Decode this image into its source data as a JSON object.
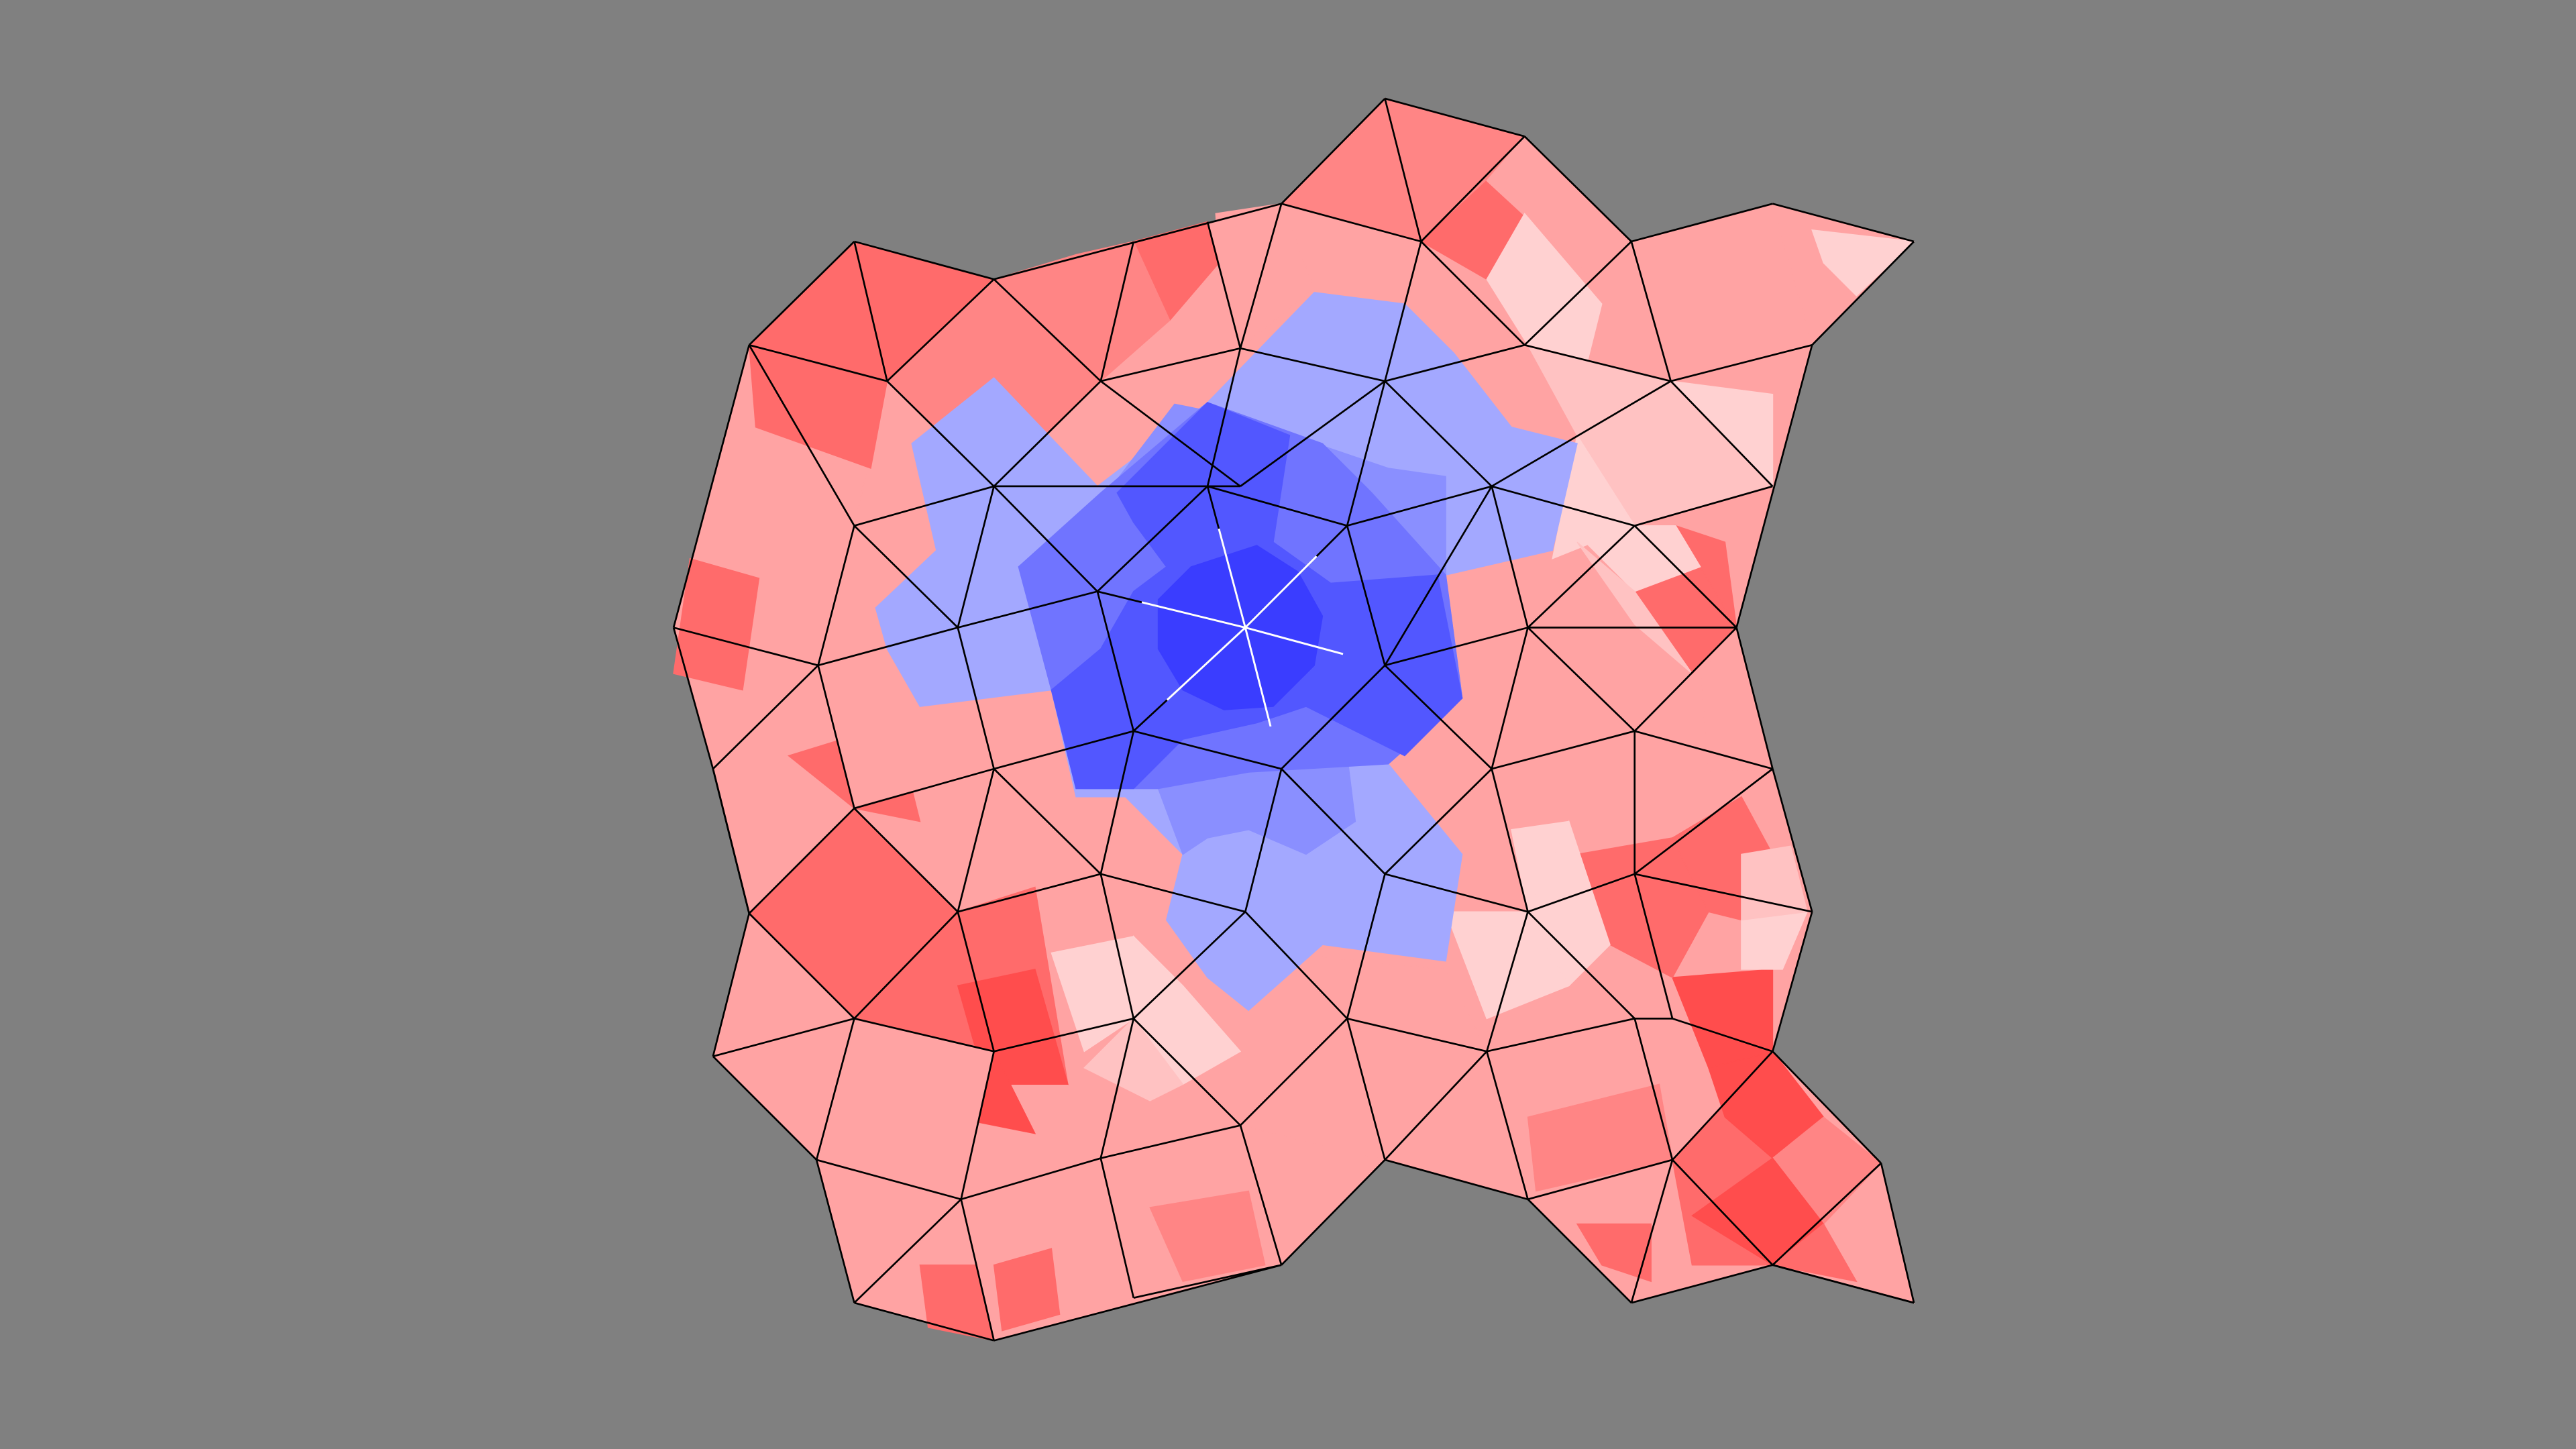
{
  "scene": {
    "background": "#808080",
    "edge_color": "#000000",
    "center_edge_color": "#ffffff"
  },
  "palette": {
    "red_strong": "#ff4d4d",
    "red_mid": "#ff6b6b",
    "red_soft": "#ff8585",
    "red_light": "#ffa3a3",
    "red_pale": "#ffc2c2",
    "red_faint": "#ffd1d1",
    "blue_faint": "#a3a8ff",
    "blue_soft": "#8a8fff",
    "blue_mid": "#7074ff",
    "blue_strong": "#5257ff",
    "blue_deep": "#3a3dff"
  }
}
